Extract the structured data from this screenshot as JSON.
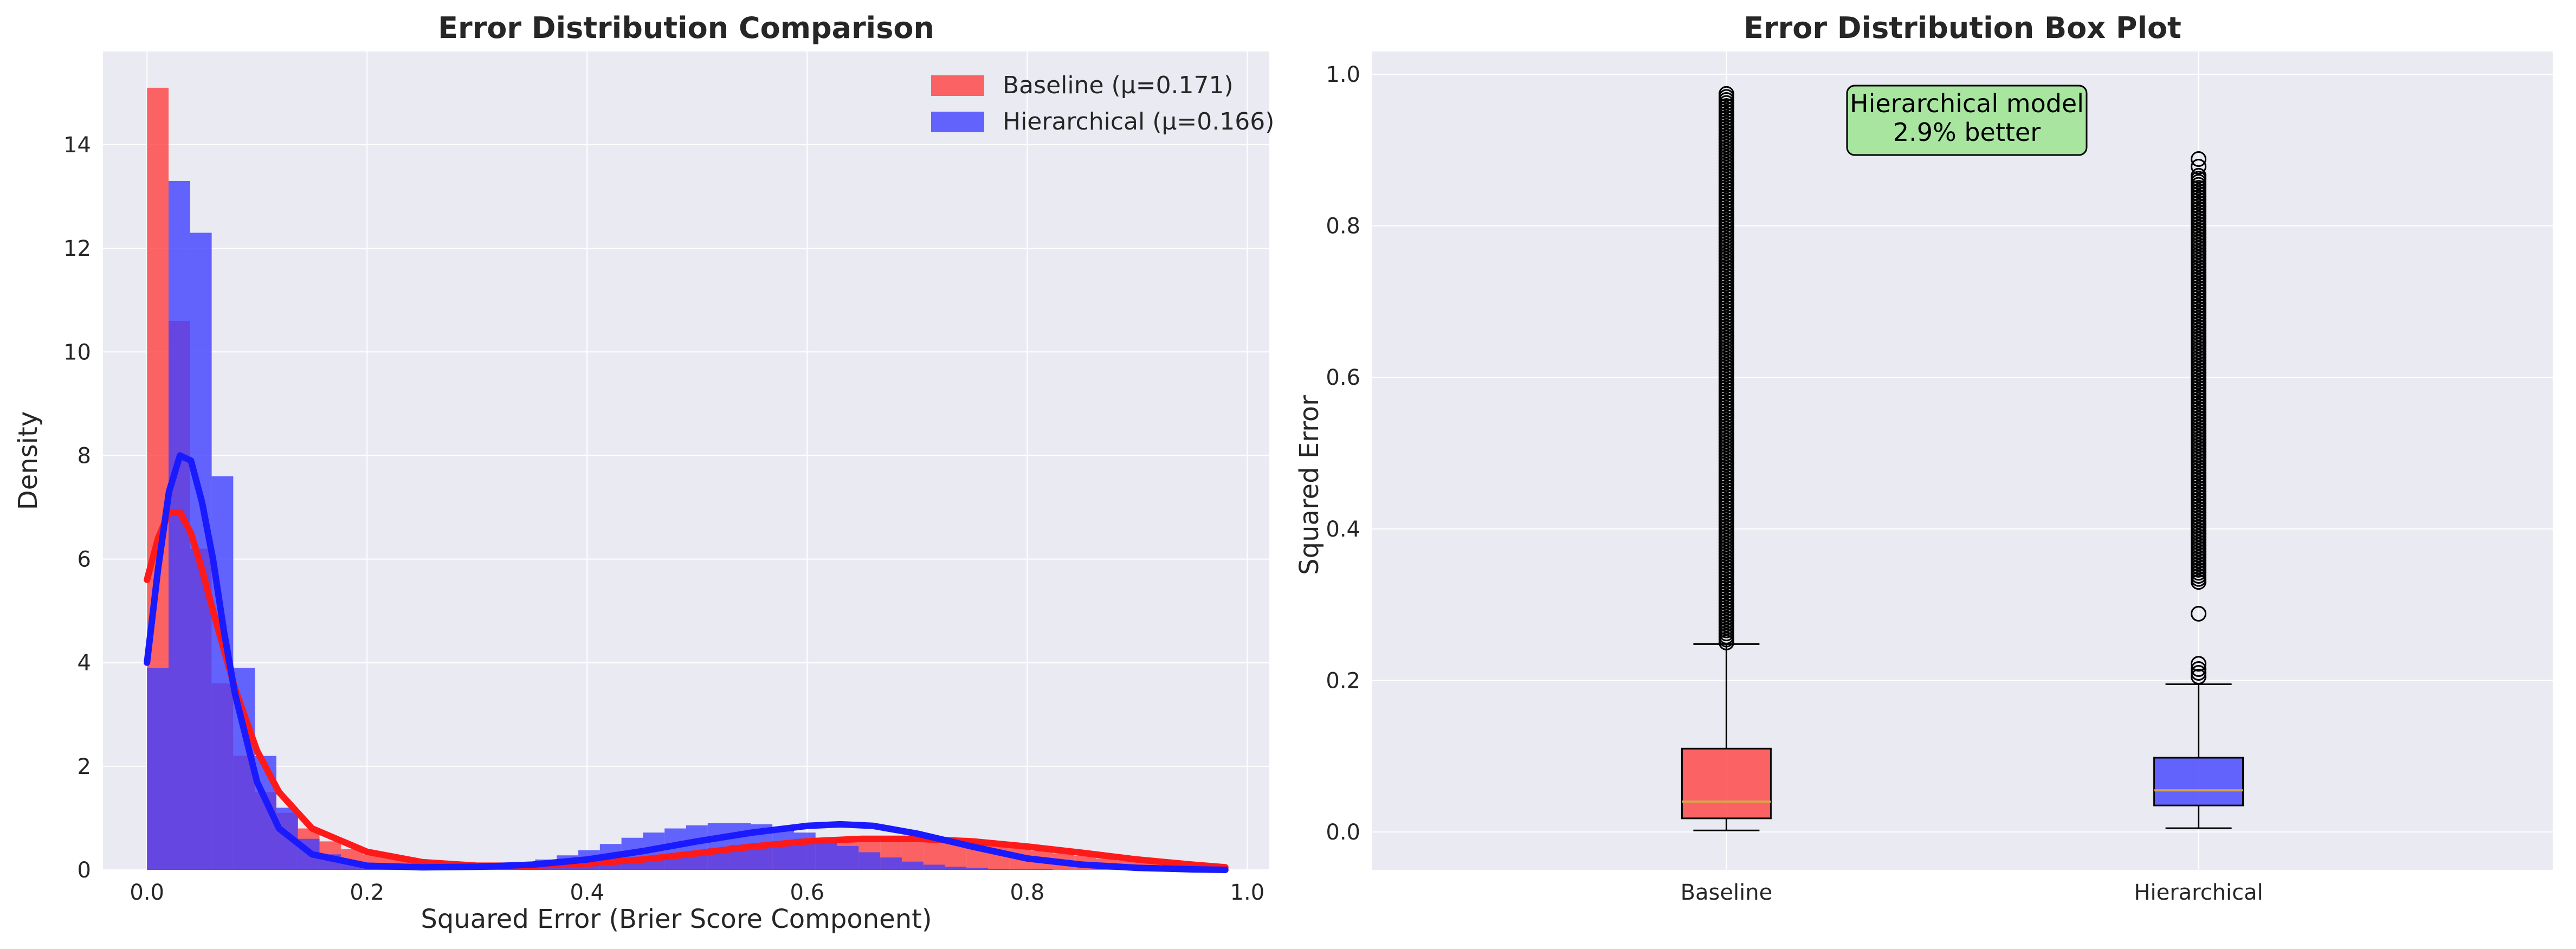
{
  "chart_data": [
    {
      "type": "histogram",
      "title": "Error Distribution Comparison",
      "xlabel": "Squared Error (Brier Score Component)",
      "ylabel": "Density",
      "xlim": [
        -0.04,
        1.02
      ],
      "ylim": [
        0,
        15.8
      ],
      "xticks": [
        "0.0",
        "0.2",
        "0.4",
        "0.6",
        "0.8",
        "1.0"
      ],
      "yticks": [
        "0",
        "2",
        "4",
        "6",
        "8",
        "10",
        "12",
        "14"
      ],
      "grid": true,
      "legend_position": "upper right",
      "series": [
        {
          "name": "Baseline (μ=0.171)",
          "color": "#ff4040",
          "bin_edges": [
            0.0,
            0.0196,
            0.0392,
            0.0588,
            0.0784,
            0.098,
            0.1176,
            0.1372,
            0.1568,
            0.1764,
            0.196,
            0.2156,
            0.2352,
            0.2548,
            0.2744,
            0.294,
            0.3136,
            0.3332,
            0.3528,
            0.3724,
            0.392,
            0.4116,
            0.4312,
            0.4508,
            0.4704,
            0.49,
            0.5096,
            0.5292,
            0.5488,
            0.5684,
            0.588,
            0.6076,
            0.6272,
            0.6468,
            0.6664,
            0.686,
            0.7056,
            0.7252,
            0.7448,
            0.7644,
            0.784,
            0.8036,
            0.8232,
            0.8428,
            0.8624,
            0.882,
            0.9016,
            0.9212,
            0.9408,
            0.9604,
            0.98
          ],
          "density": [
            15.1,
            10.6,
            6.2,
            3.6,
            2.2,
            1.5,
            1.1,
            0.8,
            0.55,
            0.4,
            0.3,
            0.22,
            0.17,
            0.13,
            0.1,
            0.08,
            0.07,
            0.07,
            0.08,
            0.1,
            0.12,
            0.15,
            0.2,
            0.25,
            0.3,
            0.36,
            0.42,
            0.48,
            0.52,
            0.56,
            0.6,
            0.62,
            0.63,
            0.62,
            0.6,
            0.58,
            0.56,
            0.53,
            0.5,
            0.46,
            0.42,
            0.37,
            0.32,
            0.27,
            0.22,
            0.17,
            0.13,
            0.09,
            0.06,
            0.04
          ],
          "kde": {
            "x": [
              0.0,
              0.01,
              0.02,
              0.03,
              0.04,
              0.05,
              0.06,
              0.08,
              0.1,
              0.12,
              0.15,
              0.2,
              0.25,
              0.3,
              0.35,
              0.4,
              0.45,
              0.5,
              0.55,
              0.6,
              0.65,
              0.7,
              0.75,
              0.8,
              0.85,
              0.9,
              0.95,
              0.98
            ],
            "y": [
              5.6,
              6.4,
              6.9,
              6.9,
              6.5,
              5.8,
              5.0,
              3.5,
              2.3,
              1.5,
              0.8,
              0.35,
              0.15,
              0.08,
              0.08,
              0.12,
              0.2,
              0.32,
              0.45,
              0.55,
              0.6,
              0.6,
              0.55,
              0.45,
              0.33,
              0.2,
              0.1,
              0.05
            ]
          }
        },
        {
          "name": "Hierarchical (μ=0.166)",
          "color": "#4040ff",
          "bin_edges": [
            0.0,
            0.0196,
            0.0392,
            0.0588,
            0.0784,
            0.098,
            0.1176,
            0.1372,
            0.1568,
            0.1764,
            0.196,
            0.2156,
            0.2352,
            0.2548,
            0.2744,
            0.294,
            0.3136,
            0.3332,
            0.3528,
            0.3724,
            0.392,
            0.4116,
            0.4312,
            0.4508,
            0.4704,
            0.49,
            0.5096,
            0.5292,
            0.5488,
            0.5684,
            0.588,
            0.6076,
            0.6272,
            0.6468,
            0.6664,
            0.686,
            0.7056,
            0.7252,
            0.7448,
            0.7644,
            0.784,
            0.8036,
            0.8232,
            0.8428,
            0.8624,
            0.882,
            0.9016,
            0.9212,
            0.9408,
            0.9604,
            0.98
          ],
          "density": [
            3.9,
            13.3,
            12.3,
            7.6,
            3.9,
            2.2,
            1.2,
            0.6,
            0.3,
            0.15,
            0.08,
            0.05,
            0.04,
            0.04,
            0.05,
            0.07,
            0.1,
            0.14,
            0.2,
            0.28,
            0.38,
            0.5,
            0.62,
            0.72,
            0.8,
            0.86,
            0.9,
            0.9,
            0.88,
            0.82,
            0.72,
            0.6,
            0.46,
            0.34,
            0.24,
            0.16,
            0.1,
            0.06,
            0.04,
            0.02,
            0.01,
            0.01,
            0.0,
            0.0,
            0.0,
            0.0,
            0.0,
            0.0,
            0.0,
            0.0
          ],
          "kde": {
            "x": [
              0.0,
              0.01,
              0.02,
              0.03,
              0.04,
              0.05,
              0.06,
              0.07,
              0.08,
              0.1,
              0.12,
              0.15,
              0.2,
              0.25,
              0.3,
              0.35,
              0.4,
              0.45,
              0.5,
              0.55,
              0.6,
              0.63,
              0.66,
              0.7,
              0.75,
              0.8,
              0.85,
              0.9,
              0.95,
              0.98
            ],
            "y": [
              4.0,
              5.8,
              7.3,
              8.0,
              7.9,
              7.1,
              6.0,
              4.6,
              3.4,
              1.7,
              0.8,
              0.3,
              0.08,
              0.05,
              0.06,
              0.1,
              0.2,
              0.36,
              0.55,
              0.72,
              0.85,
              0.88,
              0.85,
              0.7,
              0.45,
              0.22,
              0.1,
              0.04,
              0.01,
              0.0
            ]
          }
        }
      ]
    },
    {
      "type": "box",
      "title": "Error Distribution Box Plot",
      "xlabel": "",
      "ylabel": "Squared Error",
      "ylim": [
        -0.05,
        1.03
      ],
      "yticks": [
        "0.0",
        "0.2",
        "0.4",
        "0.6",
        "0.8",
        "1.0"
      ],
      "categories": [
        "Baseline",
        "Hierarchical"
      ],
      "grid": true,
      "boxes": [
        {
          "name": "Baseline",
          "color": "#ff4040",
          "whisker_low": 0.002,
          "q1": 0.018,
          "median": 0.04,
          "q3": 0.11,
          "whisker_high": 0.248,
          "outliers_from": 0.25,
          "outliers_to": 0.975
        },
        {
          "name": "Hierarchical",
          "color": "#4040ff",
          "whisker_low": 0.005,
          "q1": 0.035,
          "median": 0.055,
          "q3": 0.098,
          "whisker_high": 0.195,
          "outliers_extra": [
            0.205,
            0.21,
            0.215,
            0.222,
            0.288
          ],
          "outliers_from": 0.33,
          "outliers_to": 0.87,
          "outliers_top": [
            0.878,
            0.888
          ]
        }
      ],
      "annotation": {
        "line1": "Hierarchical model",
        "line2": "2.9% better",
        "bg_color": "#a8e6a0"
      }
    }
  ]
}
